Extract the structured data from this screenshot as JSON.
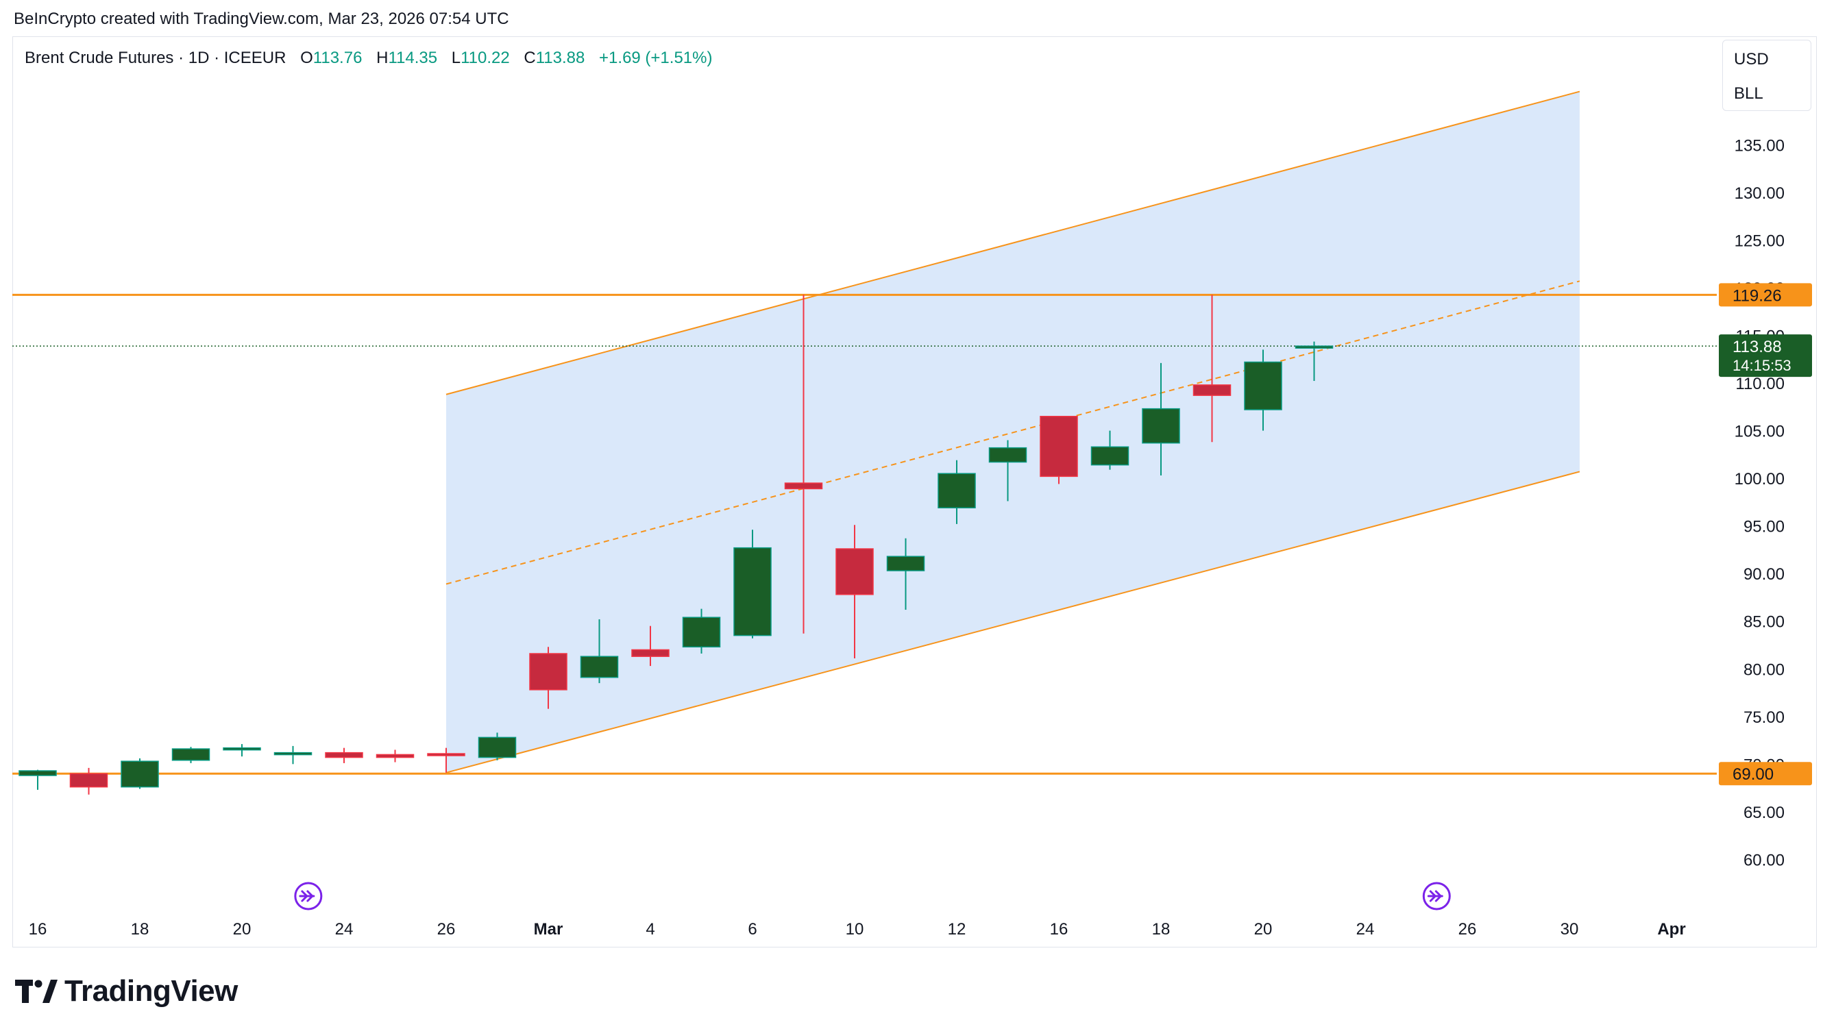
{
  "header": {
    "caption": "BeInCrypto created with TradingView.com, Mar 23, 2026 07:54 UTC"
  },
  "legend": {
    "symbol": "Brent Crude Futures · 1D · ICEEUR",
    "o_label": "O",
    "o_value": "113.76",
    "h_label": "H",
    "h_value": "114.35",
    "l_label": "L",
    "l_value": "110.22",
    "c_label": "C",
    "c_value": "113.88",
    "change": "+1.69 (+1.51%)"
  },
  "unit_box": {
    "currency": "USD",
    "unit": "BLL"
  },
  "price_labels": {
    "resistance": "119.26",
    "support": "69.00",
    "last_price": "113.88",
    "countdown": "14:15:53"
  },
  "footer": {
    "brand": "TradingView"
  },
  "colors": {
    "up": "#1a5e27",
    "up_wick": "#089981",
    "down": "#c62a3e",
    "down_wick": "#f23645",
    "level_line": "#f7931a",
    "channel_fill": "#dae8fa",
    "channel_line": "#f7931a",
    "last_price_bg": "#1a5e27",
    "event_icon": "#7b22e9"
  },
  "chart_data": {
    "type": "candlestick",
    "yaxis": {
      "ylim": [
        56.0,
        141.0
      ],
      "ticks": [
        "135.00",
        "130.00",
        "125.00",
        "120.00",
        "115.00",
        "110.00",
        "105.00",
        "100.00",
        "95.00",
        "90.00",
        "85.00",
        "80.00",
        "75.00",
        "70.00",
        "65.00",
        "60.00"
      ],
      "ytick_values": [
        135,
        130,
        125,
        120,
        115,
        110,
        105,
        100,
        95,
        90,
        85,
        80,
        75,
        70,
        65,
        60
      ]
    },
    "xaxis": {
      "labels": [
        "16",
        "18",
        "20",
        "24",
        "26",
        "Mar",
        "4",
        "6",
        "10",
        "12",
        "16",
        "18",
        "20",
        "24",
        "26",
        "30",
        "Apr"
      ],
      "label_slots": [
        0,
        2,
        4,
        6,
        8,
        10,
        12,
        14,
        16,
        18,
        20,
        22,
        24,
        26,
        28,
        30,
        32
      ]
    },
    "candles": [
      {
        "date": "Feb 16",
        "o": 68.8,
        "h": 69.4,
        "l": 67.3,
        "c": 69.3
      },
      {
        "date": "Feb 17",
        "o": 69.0,
        "h": 69.6,
        "l": 66.8,
        "c": 67.6
      },
      {
        "date": "Feb 18",
        "o": 67.6,
        "h": 70.6,
        "l": 67.4,
        "c": 70.3
      },
      {
        "date": "Feb 19",
        "o": 70.4,
        "h": 71.8,
        "l": 70.1,
        "c": 71.6
      },
      {
        "date": "Feb 20",
        "o": 71.6,
        "h": 72.1,
        "l": 70.8,
        "c": 71.7
      },
      {
        "date": "Feb 23",
        "o": 71.1,
        "h": 71.9,
        "l": 70.0,
        "c": 71.2
      },
      {
        "date": "Feb 24",
        "o": 71.2,
        "h": 71.7,
        "l": 70.1,
        "c": 70.7
      },
      {
        "date": "Feb 25",
        "o": 71.0,
        "h": 71.5,
        "l": 70.2,
        "c": 70.7
      },
      {
        "date": "Feb 26",
        "o": 71.1,
        "h": 71.7,
        "l": 69.1,
        "c": 70.9
      },
      {
        "date": "Feb 27",
        "o": 70.7,
        "h": 73.3,
        "l": 70.4,
        "c": 72.8
      },
      {
        "date": "Mar 2",
        "o": 81.6,
        "h": 82.3,
        "l": 75.8,
        "c": 77.8
      },
      {
        "date": "Mar 3",
        "o": 79.1,
        "h": 85.2,
        "l": 78.5,
        "c": 81.3
      },
      {
        "date": "Mar 4",
        "o": 82.0,
        "h": 84.5,
        "l": 80.3,
        "c": 81.3
      },
      {
        "date": "Mar 5",
        "o": 82.3,
        "h": 86.3,
        "l": 81.6,
        "c": 85.4
      },
      {
        "date": "Mar 6",
        "o": 83.5,
        "h": 94.6,
        "l": 83.2,
        "c": 92.7
      },
      {
        "date": "Mar 9",
        "o": 99.5,
        "h": 119.26,
        "l": 83.7,
        "c": 98.9
      },
      {
        "date": "Mar 10",
        "o": 92.6,
        "h": 95.1,
        "l": 81.1,
        "c": 87.8
      },
      {
        "date": "Mar 11",
        "o": 90.3,
        "h": 93.7,
        "l": 86.2,
        "c": 91.8
      },
      {
        "date": "Mar 12",
        "o": 96.9,
        "h": 101.9,
        "l": 95.2,
        "c": 100.5
      },
      {
        "date": "Mar 13",
        "o": 101.7,
        "h": 104.0,
        "l": 97.6,
        "c": 103.2
      },
      {
        "date": "Mar 16",
        "o": 106.5,
        "h": 106.5,
        "l": 99.4,
        "c": 100.2
      },
      {
        "date": "Mar 17",
        "o": 101.4,
        "h": 105.0,
        "l": 100.9,
        "c": 103.3
      },
      {
        "date": "Mar 18",
        "o": 103.7,
        "h": 112.1,
        "l": 100.3,
        "c": 107.3
      },
      {
        "date": "Mar 19",
        "o": 109.8,
        "h": 119.26,
        "l": 103.8,
        "c": 108.7
      },
      {
        "date": "Mar 20",
        "o": 107.2,
        "h": 113.5,
        "l": 105.0,
        "c": 112.2
      },
      {
        "date": "Mar 23",
        "o": 113.76,
        "h": 114.35,
        "l": 110.22,
        "c": 113.88
      }
    ],
    "levels": [
      {
        "value": 119.26,
        "label": "119.26"
      },
      {
        "value": 69.0,
        "label": "69.00"
      }
    ],
    "last_price": 113.88,
    "channel": {
      "start_date": "Feb 26",
      "end_date": "Mar 28",
      "upper": [
        108.8,
        140.6
      ],
      "middle": [
        88.9,
        120.7
      ],
      "lower": [
        69.1,
        100.7
      ]
    },
    "event_markers": [
      "Feb 21",
      "Mar 25"
    ]
  }
}
